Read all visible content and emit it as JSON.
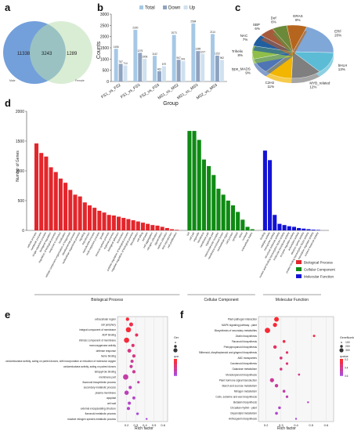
{
  "figure": {
    "panel_labels": {
      "a": "a",
      "b": "b",
      "c": "c",
      "d": "d",
      "e": "e",
      "f": "f"
    }
  },
  "chart_data": [
    {
      "id": "venn",
      "type": "venn",
      "sets": [
        {
          "name": "Male",
          "only": 11338,
          "color": "#5b8fd4"
        },
        {
          "name": "Female",
          "only": 1289,
          "color": "#b9dfb0"
        }
      ],
      "intersection": 3243
    },
    {
      "id": "deg_bars",
      "type": "bar",
      "categories": [
        "FS1_vs_FS2",
        "FS1_vs_FS3",
        "FS2_vs_FS3",
        "MS1_vs_MS2",
        "MS1_vs_MS3",
        "MS2_vs_MS3"
      ],
      "series": [
        {
          "name": "Total",
          "color": "#a6c8e6",
          "values": [
            1456,
            2300,
            1142,
            2073,
            2584,
            2114
          ]
        },
        {
          "name": "Down",
          "color": "#8fa3c0",
          "values": [
            787,
            1276,
            462,
            967,
            1355,
            1152
          ]
        },
        {
          "name": "Up",
          "color": "#cfe0ef",
          "values": [
            714,
            1008,
            679,
            901,
            1227,
            962
          ]
        }
      ],
      "xlabel": "Group",
      "ylabel": "Counts",
      "ylim": [
        0,
        3000
      ],
      "yticks": [
        0,
        500,
        1000,
        1500,
        2000,
        2500,
        3000
      ],
      "legend": "top"
    },
    {
      "id": "tf_pie",
      "type": "pie",
      "slices": [
        {
          "label": "ERF",
          "pct": "20%",
          "value": 20,
          "color": "#7fa7d8"
        },
        {
          "label": "bHLH",
          "pct": "13%",
          "value": 13,
          "color": "#5cbcd6"
        },
        {
          "label": "MYB_related",
          "pct": "12%",
          "value": 12,
          "color": "#7f7f7f"
        },
        {
          "label": "C2H2",
          "pct": "11%",
          "value": 11,
          "color": "#f2b500"
        },
        {
          "label": "M-type_MADS",
          "pct": "9%",
          "value": 9,
          "color": "#4f75b6"
        },
        {
          "label": "Trihelix",
          "pct": "8%",
          "value": 8,
          "color": "#8fbf4a"
        },
        {
          "label": "NAC",
          "pct": "7%",
          "value": 7,
          "color": "#1f5fa0"
        },
        {
          "label": "SBP",
          "pct": "6%",
          "value": 6,
          "color": "#a65a3c"
        },
        {
          "label": "Dof",
          "pct": "6%",
          "value": 6,
          "color": "#6a8a3a"
        },
        {
          "label": "GRAS",
          "pct": "8%",
          "value": 8,
          "color": "#b5651d"
        }
      ]
    },
    {
      "id": "go_bars",
      "type": "bar",
      "ylabel": "Number of Genes",
      "ylim": [
        0,
        2000
      ],
      "yticks": [
        0,
        500,
        1000,
        1500,
        2000
      ],
      "groups": [
        {
          "name": "Biological Process",
          "color": "#e3262b",
          "values": [
            1460,
            1300,
            1240,
            1060,
            980,
            870,
            800,
            680,
            600,
            570,
            470,
            420,
            380,
            330,
            300,
            260,
            250,
            230,
            210,
            190,
            170,
            150,
            130,
            110,
            90,
            80,
            60,
            40,
            20,
            10
          ],
          "labels": [
            "cellular process",
            "metabolic process",
            "single-organism process",
            "biological regulation",
            "regulation of biological process",
            "response to stimulus",
            "localization",
            "cellular component organization or biogenesis",
            "developmental process",
            "multicellular organismal process",
            "signaling",
            "reproduction",
            "reproductive process",
            "multi-organism process",
            "growth",
            "immune system process",
            "rhythmic process",
            "biological adhesion",
            "locomotion",
            "positive regulation of biological process",
            "negative regulation of biological process",
            "detoxification",
            "cell killing",
            "behavior",
            "cell aggregation",
            "nitrogen utilization",
            "pigmentation",
            "carbon utilization",
            "viral reproduction",
            "cell proliferation"
          ]
        },
        {
          "name": "Cellular Component",
          "color": "#0f8a14",
          "values": [
            1670,
            1670,
            1520,
            1190,
            1080,
            930,
            700,
            600,
            500,
            420,
            310,
            180,
            60,
            20
          ],
          "labels": [
            "cell",
            "cell part",
            "organelle",
            "membrane",
            "membrane part",
            "organelle part",
            "macromolecular complex",
            "membrane-enclosed lumen",
            "extracellular region",
            "cell junction",
            "symplast",
            "virion",
            "nucleoid",
            "extracellular matrix"
          ]
        },
        {
          "name": "Molecular Function",
          "color": "#1313d6",
          "values": [
            1340,
            1180,
            260,
            110,
            90,
            70,
            60,
            40,
            30,
            20,
            12,
            8
          ],
          "labels": [
            "binding",
            "catalytic activity",
            "transporter activity",
            "structural molecule activity",
            "nucleic acid binding transcription factor activity",
            "molecular transducer activity",
            "enzyme regulator activity",
            "antioxidant activity",
            "electron carrier activity",
            "protein binding transcription factor activity",
            "translation regulator activity",
            "nutrient reservoir activity"
          ]
        }
      ],
      "legend": "right"
    },
    {
      "id": "go_enrich",
      "type": "scatter",
      "xlabel": "Rich factor",
      "xlim": [
        0.1,
        0.65
      ],
      "xticks": [
        "0.2",
        "0.3",
        "0.4",
        "0.5",
        "0.6"
      ],
      "size_legend_title": "GeneNumber",
      "size_legend": [
        "200",
        "400",
        "600"
      ],
      "color_legend_title": "qvalue",
      "color_legend": [
        "0.025",
        "0.050",
        "0.075",
        "0.100"
      ],
      "terms": [
        "extracellular region",
        "cell periphery",
        "integral component of membrane",
        "ADP binding",
        "intrinsic component of membrane",
        "monooxygenase activity",
        "defense response",
        "heme binding",
        "oxidoreductase activity, acting on paired donors, with incorporation or reduction of molecular oxygen",
        "oxidoreductase activity, acting on paired donors",
        "tetrapyrrole binding",
        "membrane part",
        "flavonoid biosynthetic process",
        "secondary metabolic process",
        "plasma membrane",
        "apoplast",
        "cell wall",
        "external encapsulating structure",
        "flavonoid metabolic process",
        "reactive nitrogen species metabolic process"
      ],
      "x": [
        0.21,
        0.25,
        0.22,
        0.31,
        0.2,
        0.27,
        0.23,
        0.28,
        0.26,
        0.25,
        0.28,
        0.19,
        0.33,
        0.24,
        0.2,
        0.28,
        0.23,
        0.22,
        0.32,
        0.42
      ],
      "size": [
        200,
        300,
        650,
        150,
        660,
        160,
        280,
        180,
        150,
        160,
        190,
        700,
        70,
        160,
        400,
        130,
        150,
        150,
        70,
        20
      ],
      "q": [
        0.01,
        0.02,
        0.01,
        0.03,
        0.01,
        0.04,
        0.05,
        0.05,
        0.06,
        0.06,
        0.06,
        0.07,
        0.07,
        0.08,
        0.08,
        0.09,
        0.09,
        0.09,
        0.1,
        0.1
      ]
    },
    {
      "id": "kegg_enrich",
      "type": "scatter",
      "xlabel": "Rich factor",
      "xlim": [
        0.15,
        0.65
      ],
      "xticks": [
        "0.2",
        "0.3",
        "0.4",
        "0.5",
        "0.6"
      ],
      "size_legend_title": "GeneNumber",
      "size_legend": [
        "100",
        "200",
        "300"
      ],
      "color_legend_title": "qvalue",
      "color_legend": [
        "0.2",
        "0.4",
        "0.6"
      ],
      "terms": [
        "Plant-pathogen interaction",
        "MAPK signaling pathway - plant",
        "Biosynthesis of secondary metabolites",
        "Zeatin biosynthesis",
        "Flavonoid biosynthesis",
        "Phenylpropanoid biosynthesis",
        "Stilbenoid, diarylheptanoid and gingerol biosynthesis",
        "ABC transporters",
        "Carotenoid biosynthesis",
        "Galactose metabolism",
        "Monoterpenoid biosynthesis",
        "Plant hormone signal transduction",
        "Starch and sucrose metabolism",
        "Nitrogen metabolism",
        "Cutin, suberine and wax biosynthesis",
        "Betalain biosynthesis",
        "Circadian rhythm - plant",
        "Glycerolipid metabolism",
        "Anthocyanin biosynthesis"
      ],
      "x": [
        0.27,
        0.26,
        0.21,
        0.52,
        0.32,
        0.26,
        0.34,
        0.3,
        0.34,
        0.3,
        0.42,
        0.24,
        0.27,
        0.32,
        0.34,
        0.48,
        0.29,
        0.27,
        0.4
      ],
      "size": [
        280,
        200,
        400,
        30,
        60,
        120,
        40,
        70,
        40,
        60,
        20,
        200,
        110,
        60,
        40,
        10,
        50,
        60,
        10
      ],
      "q": [
        0.02,
        0.05,
        0.05,
        0.1,
        0.12,
        0.2,
        0.25,
        0.3,
        0.3,
        0.32,
        0.35,
        0.4,
        0.42,
        0.45,
        0.5,
        0.55,
        0.58,
        0.6,
        0.65
      ]
    }
  ]
}
